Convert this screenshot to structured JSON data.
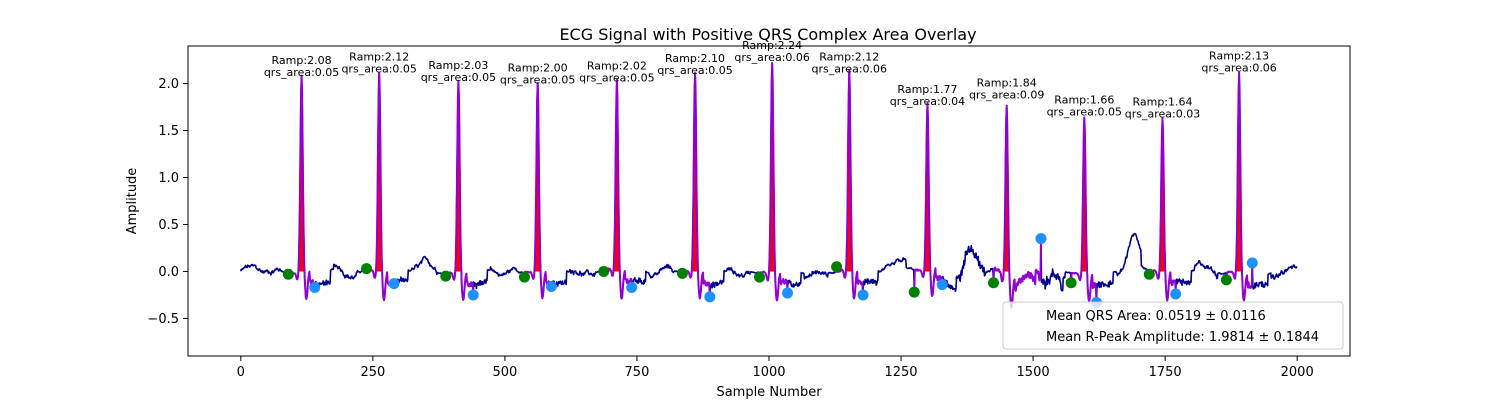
{
  "chart_data": {
    "type": "line",
    "title": "ECG Signal with Positive QRS Complex Area Overlay",
    "xlabel": "Sample Number",
    "ylabel": "Amplitude",
    "xlim": [
      -100,
      2100
    ],
    "ylim": [
      -0.9,
      2.4
    ],
    "x_ticks": [
      0,
      250,
      500,
      750,
      1000,
      1250,
      1500,
      1750,
      2000
    ],
    "y_ticks": [
      -0.5,
      0.0,
      0.5,
      1.0,
      1.5,
      2.0
    ],
    "x_tick_labels": [
      "0",
      "250",
      "500",
      "750",
      "1000",
      "1250",
      "1500",
      "1750",
      "2000"
    ],
    "y_tick_labels": [
      "−0.5",
      "0.0",
      "0.5",
      "1.0",
      "1.5",
      "2.0"
    ],
    "grid": false,
    "signal_x_range": [
      0,
      2000
    ],
    "beats": [
      {
        "r_peak": 115,
        "r_amp": 2.08,
        "qrs_area": 0.05,
        "q_onset": [
          90,
          -0.03
        ],
        "s_offset": [
          140,
          -0.17
        ]
      },
      {
        "r_peak": 262,
        "r_amp": 2.12,
        "qrs_area": 0.05,
        "q_onset": [
          238,
          0.03
        ],
        "s_offset": [
          290,
          -0.13
        ]
      },
      {
        "r_peak": 412,
        "r_amp": 2.03,
        "qrs_area": 0.05,
        "q_onset": [
          388,
          -0.05
        ],
        "s_offset": [
          440,
          -0.25
        ]
      },
      {
        "r_peak": 562,
        "r_amp": 2.0,
        "qrs_area": 0.05,
        "q_onset": [
          537,
          -0.06
        ],
        "s_offset": [
          588,
          -0.16
        ]
      },
      {
        "r_peak": 712,
        "r_amp": 2.02,
        "qrs_area": 0.05,
        "q_onset": [
          687,
          0.0
        ],
        "s_offset": [
          740,
          -0.17
        ]
      },
      {
        "r_peak": 860,
        "r_amp": 2.1,
        "qrs_area": 0.05,
        "q_onset": [
          836,
          -0.02
        ],
        "s_offset": [
          888,
          -0.27
        ]
      },
      {
        "r_peak": 1006,
        "r_amp": 2.24,
        "qrs_area": 0.06,
        "q_onset": [
          982,
          -0.06
        ],
        "s_offset": [
          1035,
          -0.23
        ]
      },
      {
        "r_peak": 1152,
        "r_amp": 2.12,
        "qrs_area": 0.06,
        "q_onset": [
          1128,
          0.05
        ],
        "s_offset": [
          1178,
          -0.25
        ]
      },
      {
        "r_peak": 1300,
        "r_amp": 1.77,
        "qrs_area": 0.04,
        "q_onset": [
          1275,
          -0.22
        ],
        "s_offset": [
          1328,
          -0.14
        ]
      },
      {
        "r_peak": 1450,
        "r_amp": 1.84,
        "qrs_area": 0.09,
        "q_onset": [
          1425,
          -0.12
        ],
        "s_offset": [
          1515,
          0.35
        ]
      },
      {
        "r_peak": 1597,
        "r_amp": 1.66,
        "qrs_area": 0.05,
        "q_onset": [
          1572,
          -0.12
        ],
        "s_offset": [
          1620,
          -0.33
        ]
      },
      {
        "r_peak": 1745,
        "r_amp": 1.64,
        "qrs_area": 0.03,
        "q_onset": [
          1720,
          -0.03
        ],
        "s_offset": [
          1770,
          -0.24
        ]
      },
      {
        "r_peak": 1890,
        "r_amp": 2.13,
        "qrs_area": 0.06,
        "q_onset": [
          1866,
          -0.09
        ],
        "s_offset": [
          1915,
          0.09
        ]
      }
    ],
    "annotation_label_prefixes": {
      "amp": "Ramp:",
      "area": "qrs_area:"
    },
    "legend": {
      "placement": "lower right",
      "entries": [
        "Mean QRS Area: 0.0519 ± 0.0116",
        "Mean R-Peak Amplitude: 1.9814 ± 0.1844"
      ]
    },
    "colors": {
      "signal": "#00008b",
      "qrs_segment": "#9400d3",
      "area_fill": "#ff0000",
      "q_marker": "#008000",
      "s_marker": "#1e90ff",
      "legend_border": "#cccccc"
    }
  }
}
